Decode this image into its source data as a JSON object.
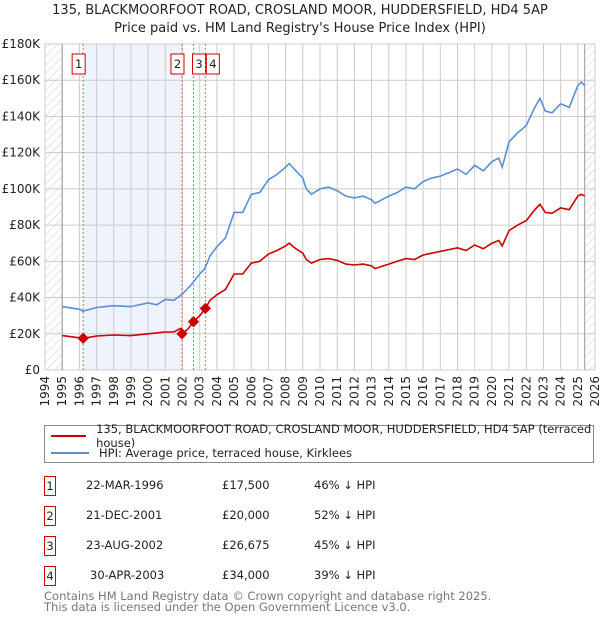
{
  "title_line1": "135, BLACKMOORFOOT ROAD, CROSLAND MOOR, HUDDERSFIELD, HD4 5AP",
  "title_line2": "Price paid vs. HM Land Registry's House Price Index (HPI)",
  "legend": {
    "property": "135, BLACKMOORFOOT ROAD, CROSLAND MOOR, HUDDERSFIELD, HD4 5AP (terraced house)",
    "hpi": "HPI: Average price, terraced house, Kirklees"
  },
  "sales": [
    {
      "num": "1",
      "date": "22-MAR-1996",
      "price": "£17,500",
      "hpi": "46% ↓ HPI",
      "x": 1996.22,
      "y": 17500
    },
    {
      "num": "2",
      "date": "21-DEC-2001",
      "price": "£20,000",
      "hpi": "52% ↓ HPI",
      "x": 2001.97,
      "y": 20000
    },
    {
      "num": "3",
      "date": "23-AUG-2002",
      "price": "£26,675",
      "hpi": "45% ↓ HPI",
      "x": 2002.64,
      "y": 26675
    },
    {
      "num": "4",
      "date": "30-APR-2003",
      "price": "£34,000",
      "hpi": "39% ↓ HPI",
      "x": 2003.33,
      "y": 34000
    }
  ],
  "footer1": "Contains HM Land Registry data © Crown copyright and database right 2025.",
  "footer2": "This data is licensed under the Open Government Licence v3.0.",
  "colors": {
    "property": "#cc0000",
    "hpi": "#5b8fd4",
    "shade": "#eef3fd"
  },
  "chart_data": {
    "type": "line",
    "xlim": [
      1994,
      2026
    ],
    "ylim": [
      0,
      180000
    ],
    "yticks": [
      0,
      20000,
      40000,
      60000,
      80000,
      100000,
      120000,
      140000,
      160000,
      180000
    ],
    "ytick_labels": [
      "£0",
      "£20K",
      "£40K",
      "£60K",
      "£80K",
      "£100K",
      "£120K",
      "£140K",
      "£160K",
      "£180K"
    ],
    "xticks": [
      "1994",
      "1995",
      "1996",
      "1997",
      "1998",
      "1999",
      "2000",
      "2001",
      "2002",
      "2003",
      "2004",
      "2005",
      "2006",
      "2007",
      "2008",
      "2009",
      "2010",
      "2011",
      "2012",
      "2013",
      "2014",
      "2015",
      "2016",
      "2017",
      "2018",
      "2019",
      "2020",
      "2021",
      "2022",
      "2023",
      "2024",
      "2025",
      "2026"
    ],
    "data_range": [
      1995,
      2025.4
    ],
    "series": [
      {
        "name": "HPI",
        "x": [
          1995,
          1996,
          1996.2,
          1997,
          1998,
          1999,
          2000,
          2000.5,
          2001,
          2001.5,
          2002,
          2002.5,
          2003,
          2003.3,
          2003.6,
          2004,
          2004.5,
          2005,
          2005.5,
          2006,
          2006.5,
          2007,
          2007.5,
          2008,
          2008.2,
          2008.6,
          2009,
          2009.2,
          2009.5,
          2010,
          2010.5,
          2011,
          2011.5,
          2012,
          2012.5,
          2013,
          2013.2,
          2014,
          2014.5,
          2015,
          2015.5,
          2016,
          2016.5,
          2017,
          2017.5,
          2018,
          2018.5,
          2019,
          2019.5,
          2020,
          2020.4,
          2020.6,
          2021,
          2021.5,
          2022,
          2022.5,
          2022.8,
          2023.1,
          2023.5,
          2024,
          2024.5,
          2025,
          2025.2,
          2025.4
        ],
        "y": [
          35000,
          33500,
          32500,
          34500,
          35500,
          35000,
          37000,
          36000,
          39000,
          38500,
          42000,
          47000,
          53000,
          56000,
          63000,
          68000,
          73000,
          87000,
          87000,
          97000,
          98000,
          105000,
          108000,
          112000,
          114000,
          110000,
          106000,
          100000,
          97000,
          100000,
          101000,
          99000,
          96000,
          95000,
          96000,
          94000,
          92000,
          96000,
          98000,
          101000,
          100000,
          104000,
          106000,
          107000,
          109000,
          111000,
          108000,
          113000,
          110000,
          115000,
          117000,
          112000,
          126000,
          131000,
          135000,
          145000,
          150000,
          143000,
          142000,
          147000,
          145000,
          157000,
          159000,
          157000
        ]
      },
      {
        "name": "Property",
        "x": [
          1995,
          1996.22,
          1997,
          1998,
          1999,
          2000,
          2001,
          2001.5,
          2001.9,
          2001.97,
          2002.3,
          2002.64,
          2003,
          2003.33,
          2003.6,
          2004,
          2004.5,
          2005,
          2005.5,
          2006,
          2006.5,
          2007,
          2007.5,
          2008,
          2008.2,
          2008.6,
          2009,
          2009.2,
          2009.5,
          2010,
          2010.5,
          2011,
          2011.5,
          2012,
          2012.5,
          2013,
          2013.2,
          2014,
          2014.5,
          2015,
          2015.5,
          2016,
          2016.5,
          2017,
          2017.5,
          2018,
          2018.5,
          2019,
          2019.5,
          2020,
          2020.4,
          2020.6,
          2021,
          2021.5,
          2022,
          2022.5,
          2022.8,
          2023.1,
          2023.5,
          2024,
          2024.5,
          2025,
          2025.2,
          2025.4
        ],
        "y": [
          19000,
          17500,
          18800,
          19300,
          19000,
          20000,
          21000,
          21000,
          23000,
          20000,
          22500,
          26675,
          30000,
          34000,
          38500,
          41500,
          44500,
          53000,
          53000,
          59000,
          60000,
          64000,
          66000,
          68500,
          70000,
          67000,
          64500,
          61000,
          59000,
          61000,
          61500,
          60500,
          58500,
          58000,
          58500,
          57500,
          56000,
          58500,
          60000,
          61500,
          61000,
          63500,
          64500,
          65500,
          66500,
          67500,
          66000,
          69000,
          67000,
          70000,
          71500,
          68500,
          77000,
          80000,
          82500,
          88500,
          91500,
          87000,
          86500,
          89500,
          88500,
          96000,
          97000,
          96000
        ]
      }
    ]
  }
}
